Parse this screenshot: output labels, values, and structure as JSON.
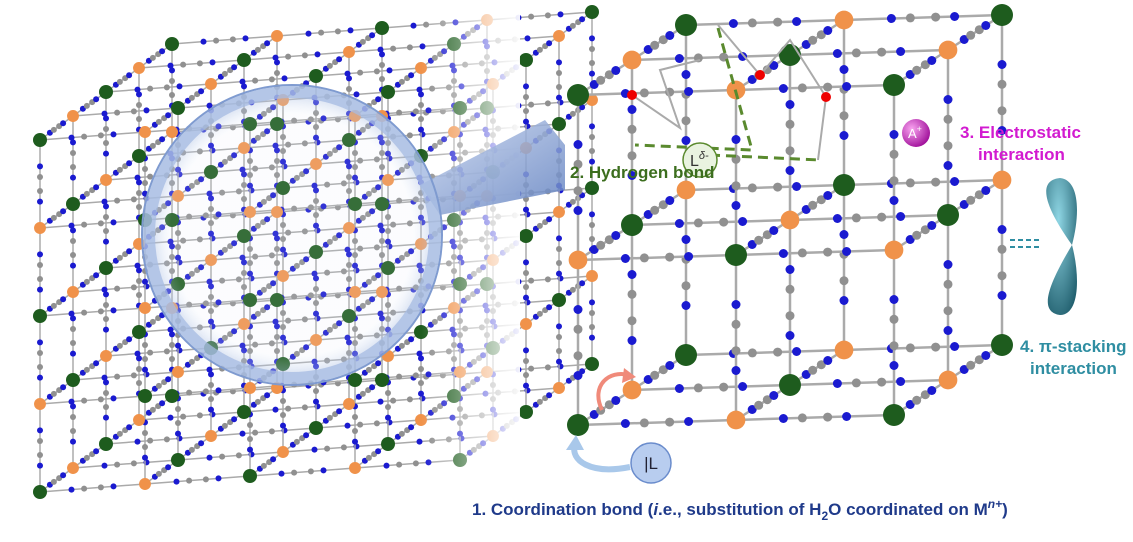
{
  "annotations": {
    "hydrogen_bond": "2. Hydrogen bond",
    "electrostatic": [
      "3. Electrostatic",
      "interaction"
    ],
    "pi_stacking": [
      "4. π-stacking",
      "interaction"
    ],
    "coordination": [
      "1. Coordination bond (",
      "i",
      ".e., substitution of H",
      "2",
      "O coordinated on M",
      "n+",
      ")"
    ]
  },
  "symbols": {
    "ligand_anion": "L",
    "ligand_anion_charge": "δ-",
    "cation": "A",
    "cation_charge": "+",
    "ligand": "|L"
  }
}
